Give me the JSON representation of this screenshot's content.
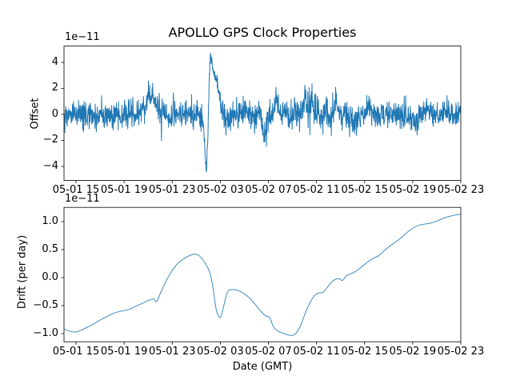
{
  "figure": {
    "title": "APOLLO GPS Clock Properties",
    "background_color": "#ffffff",
    "line_color": "#1f77b4",
    "spine_color": "#000000",
    "text_color": "#000000"
  },
  "chart_data": [
    {
      "id": "offset",
      "type": "line",
      "ylabel": "Offset",
      "scale_label": "1e−11",
      "xlim_hours": [
        0,
        33
      ],
      "ylim": [
        -5.083,
        5.255
      ],
      "x_ticks": {
        "hours": [
          1,
          5,
          9,
          13,
          17,
          21,
          25,
          29,
          33
        ],
        "labels": [
          "05-01 15",
          "05-01 19",
          "05-01 23",
          "05-02 03",
          "05-02 07",
          "05-02 11",
          "05-02 15",
          "05-02 19",
          "05-02 23"
        ]
      },
      "y_ticks": {
        "values": [
          4,
          2,
          0,
          -2,
          -4
        ],
        "labels": [
          "4",
          "2",
          "0",
          "−2",
          "−4"
        ]
      },
      "series_model": {
        "note": "noisy clock offset (1e-11 s) around 0 with event spike near 05-02 02: dip to -4.65 then peak +4.9 decaying shoulder; bumps near 05-01 21 (+2.3), 05-02 05:30 (-2.6), 05-02 07:30 (+2.5), 05-02 10 (+2.8)",
        "n_samples": 1500,
        "seed": 7,
        "clamp": [
          -4.68,
          4.93
        ],
        "mean_keypoints": [
          [
            0,
            0
          ],
          [
            6.5,
            0
          ],
          [
            6.99,
            1.3
          ],
          [
            7.3,
            1.9
          ],
          [
            7.6,
            1.1
          ],
          [
            7.95,
            0.2
          ],
          [
            8.3,
            0
          ],
          [
            11.3,
            0
          ],
          [
            11.55,
            -0.4
          ],
          [
            11.7,
            -2.3
          ],
          [
            11.85,
            -4.5
          ],
          [
            11.95,
            -2.0
          ],
          [
            12.05,
            1.5
          ],
          [
            12.17,
            4.7
          ],
          [
            12.35,
            3.6
          ],
          [
            12.55,
            3.0
          ],
          [
            12.75,
            2.3
          ],
          [
            12.95,
            1.2
          ],
          [
            13.15,
            0.2
          ],
          [
            13.4,
            -0.6
          ],
          [
            13.65,
            -0.35
          ],
          [
            13.9,
            0
          ],
          [
            16.3,
            0
          ],
          [
            16.63,
            -1.7
          ],
          [
            16.9,
            -0.35
          ],
          [
            17.2,
            0
          ],
          [
            17.4,
            0.2
          ],
          [
            17.63,
            1.5
          ],
          [
            17.9,
            0.3
          ],
          [
            18.15,
            0
          ],
          [
            19.8,
            0.2
          ],
          [
            20.03,
            1.4
          ],
          [
            20.3,
            0.5
          ],
          [
            20.56,
            1.3
          ],
          [
            20.9,
            0.2
          ],
          [
            21.2,
            0
          ],
          [
            22.4,
            0
          ],
          [
            22.62,
            1.1
          ],
          [
            22.9,
            0
          ],
          [
            23.8,
            -0.2
          ],
          [
            24.05,
            -0.9
          ],
          [
            24.3,
            -0.2
          ],
          [
            25.1,
            0
          ],
          [
            25.29,
            0.9
          ],
          [
            25.6,
            0
          ],
          [
            29.1,
            -0.3
          ],
          [
            29.29,
            -1.0
          ],
          [
            29.6,
            0
          ],
          [
            33,
            0.15
          ]
        ],
        "sigma_keypoints": [
          [
            0,
            0.55
          ],
          [
            11.4,
            0.55
          ],
          [
            11.6,
            0.28
          ],
          [
            12.3,
            0.25
          ],
          [
            12.9,
            0.45
          ],
          [
            13.3,
            0.6
          ],
          [
            14,
            0.55
          ],
          [
            19.5,
            0.62
          ],
          [
            20.8,
            0.75
          ],
          [
            21.5,
            0.6
          ],
          [
            33,
            0.55
          ]
        ]
      }
    },
    {
      "id": "drift",
      "type": "line",
      "ylabel": "Drift (per day)",
      "xlabel": "Date (GMT)",
      "scale_label": "1e−11",
      "xlim_hours": [
        0,
        33
      ],
      "ylim": [
        -1.146,
        1.254
      ],
      "x_ticks": {
        "hours": [
          1,
          5,
          9,
          13,
          17,
          21,
          25,
          29,
          33
        ],
        "labels": [
          "05-01 15",
          "05-01 19",
          "05-01 23",
          "05-02 03",
          "05-02 07",
          "05-02 11",
          "05-02 15",
          "05-02 19",
          "05-02 23"
        ]
      },
      "y_ticks": {
        "values": [
          1.0,
          0.5,
          0.0,
          -0.5,
          -1.0
        ],
        "labels": [
          "1.0",
          "0.5",
          "0.0",
          "−0.5",
          "−1.0"
        ]
      },
      "keypoints": [
        [
          0,
          -0.92
        ],
        [
          0.53,
          -0.96
        ],
        [
          1,
          -0.97
        ],
        [
          1.53,
          -0.93
        ],
        [
          2,
          -0.88
        ],
        [
          2.53,
          -0.82
        ],
        [
          3,
          -0.76
        ],
        [
          3.53,
          -0.7
        ],
        [
          4,
          -0.65
        ],
        [
          4.52,
          -0.61
        ],
        [
          5,
          -0.59
        ],
        [
          5.52,
          -0.56
        ],
        [
          6,
          -0.51
        ],
        [
          6.52,
          -0.46
        ],
        [
          6.99,
          -0.41
        ],
        [
          7.45,
          -0.38
        ],
        [
          7.7,
          -0.43
        ],
        [
          7.98,
          -0.3
        ],
        [
          8.52,
          -0.05
        ],
        [
          8.98,
          0.12
        ],
        [
          9.45,
          0.25
        ],
        [
          9.98,
          0.34
        ],
        [
          10.51,
          0.4
        ],
        [
          10.84,
          0.42
        ],
        [
          11.18,
          0.4
        ],
        [
          11.51,
          0.33
        ],
        [
          11.84,
          0.22
        ],
        [
          12.11,
          0.1
        ],
        [
          12.37,
          -0.15
        ],
        [
          12.64,
          -0.55
        ],
        [
          12.84,
          -0.68
        ],
        [
          13.04,
          -0.7
        ],
        [
          13.31,
          -0.48
        ],
        [
          13.57,
          -0.27
        ],
        [
          13.84,
          -0.22
        ],
        [
          14.3,
          -0.22
        ],
        [
          14.77,
          -0.26
        ],
        [
          15.3,
          -0.34
        ],
        [
          15.83,
          -0.46
        ],
        [
          16.37,
          -0.6
        ],
        [
          16.83,
          -0.69
        ],
        [
          17.1,
          -0.71
        ],
        [
          17.43,
          -0.88
        ],
        [
          17.83,
          -0.96
        ],
        [
          18.3,
          -1
        ],
        [
          18.76,
          -1.03
        ],
        [
          19.16,
          -1.02
        ],
        [
          19.63,
          -0.88
        ],
        [
          20.09,
          -0.62
        ],
        [
          20.63,
          -0.38
        ],
        [
          21.09,
          -0.28
        ],
        [
          21.56,
          -0.26
        ],
        [
          22.09,
          -0.12
        ],
        [
          22.49,
          -0.04
        ],
        [
          22.89,
          -0.02
        ],
        [
          23.15,
          -0.05
        ],
        [
          23.55,
          0.04
        ],
        [
          24.09,
          0.09
        ],
        [
          24.62,
          0.17
        ],
        [
          25.15,
          0.26
        ],
        [
          25.68,
          0.34
        ],
        [
          26.08,
          0.38
        ],
        [
          26.48,
          0.45
        ],
        [
          27.01,
          0.55
        ],
        [
          27.55,
          0.63
        ],
        [
          28.08,
          0.72
        ],
        [
          28.61,
          0.82
        ],
        [
          29.14,
          0.9
        ],
        [
          29.61,
          0.94
        ],
        [
          30.14,
          0.96
        ],
        [
          30.61,
          0.98
        ],
        [
          31.14,
          1.02
        ],
        [
          31.67,
          1.07
        ],
        [
          32.2,
          1.1
        ],
        [
          32.6,
          1.12
        ],
        [
          33,
          1.13
        ]
      ]
    }
  ]
}
